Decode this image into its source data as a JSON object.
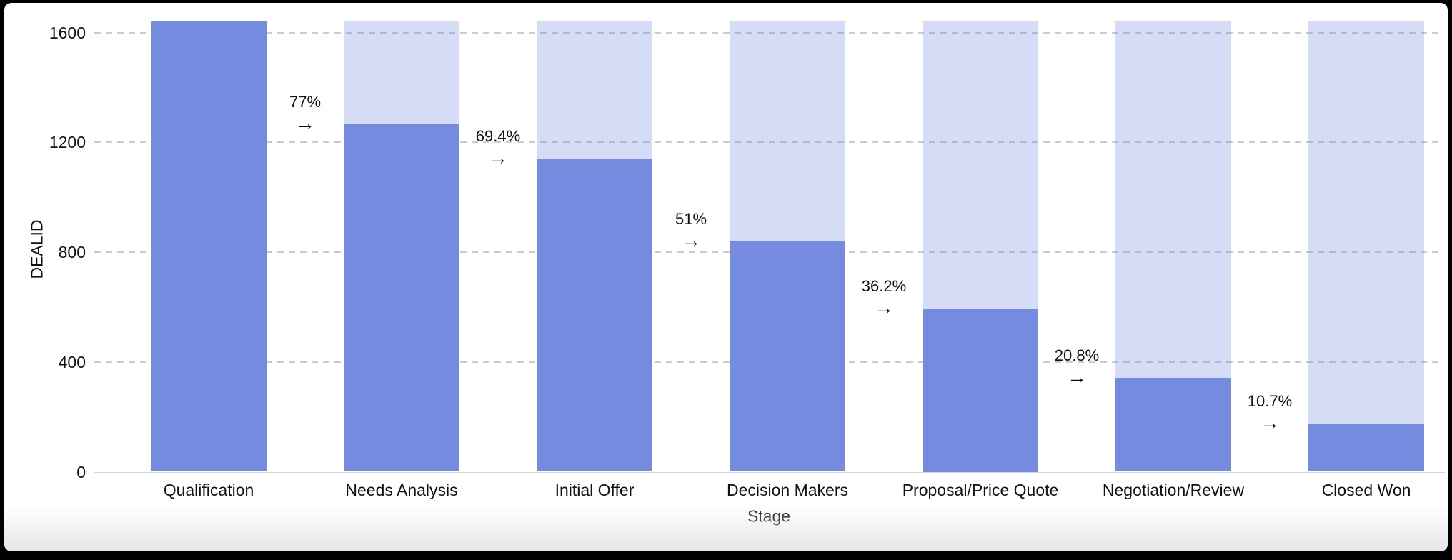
{
  "chart_data": {
    "type": "bar",
    "subtype": "funnel-conversion",
    "title": "",
    "xlabel": "Stage",
    "ylabel": "DEALID",
    "categories": [
      "Qualification",
      "Needs Analysis",
      "Initial Offer",
      "Decision Makers",
      "Proposal/Price Quote",
      "Negotiation/Review",
      "Closed Won"
    ],
    "values": [
      1644,
      1266,
      1141,
      838,
      595,
      342,
      176
    ],
    "background_bar_value": 1644,
    "conversion_labels": [
      "77%",
      "69.4%",
      "51%",
      "36.2%",
      "20.8%",
      "10.7%"
    ],
    "arrow_glyph": "→",
    "y_ticks": [
      0,
      400,
      800,
      1200,
      1600
    ],
    "ylim": [
      0,
      1644
    ],
    "grid": "horizontal-dashed",
    "legend": "none",
    "colors": {
      "bar": "#758BE0",
      "bar_background": "rgba(117,139,224,0.3)",
      "gridline": "#cccccc",
      "axis_line": "#d7d7d7",
      "text": "#111111",
      "frame": "#000000",
      "plot_background": "#ffffff"
    }
  }
}
